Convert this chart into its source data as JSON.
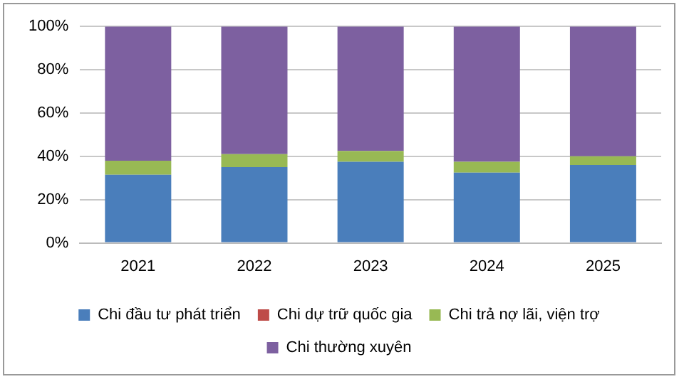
{
  "chart_data": {
    "type": "bar",
    "stacked": true,
    "categories": [
      "2021",
      "2022",
      "2023",
      "2024",
      "2025"
    ],
    "series": [
      {
        "name": "Chi đầu tư phát triển",
        "color": "#4a7ebb",
        "values": [
          31.5,
          35,
          37.5,
          32.5,
          36
        ]
      },
      {
        "name": "Chi dự trữ quốc gia",
        "color": "#be4b48",
        "values": [
          0,
          0,
          0,
          0,
          0
        ]
      },
      {
        "name": "Chi trả nợ lãi, viện trợ",
        "color": "#98b954",
        "values": [
          6.5,
          6,
          5,
          5,
          4
        ]
      },
      {
        "name": "Chi thường xuyên",
        "color": "#7d60a0",
        "values": [
          62,
          59,
          57.5,
          62.5,
          60
        ]
      }
    ],
    "ylim": [
      0,
      100
    ],
    "yticks": [
      {
        "value": 0,
        "label": "0%"
      },
      {
        "value": 20,
        "label": "20%"
      },
      {
        "value": 40,
        "label": "40%"
      },
      {
        "value": 60,
        "label": "60%"
      },
      {
        "value": 80,
        "label": "80%"
      },
      {
        "value": 100,
        "label": "100%"
      }
    ],
    "grid": "y",
    "legend": "bottom"
  }
}
